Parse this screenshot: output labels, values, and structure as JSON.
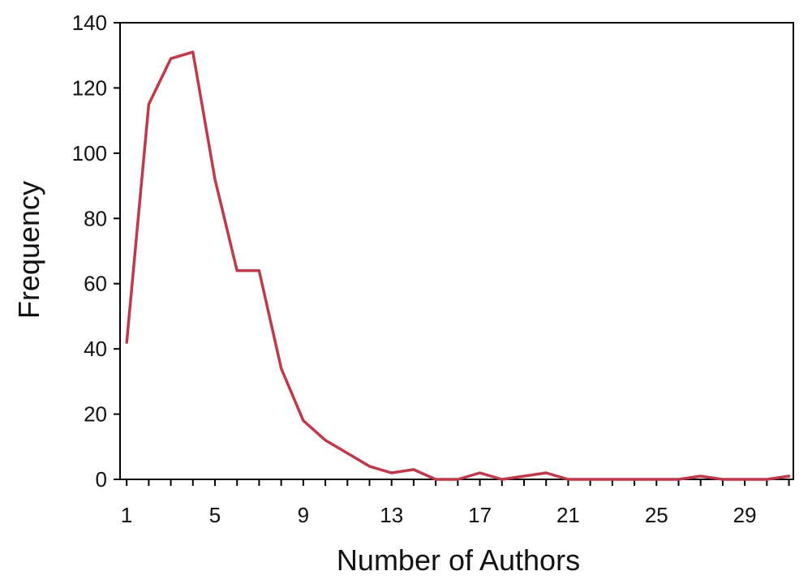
{
  "chart_data": {
    "type": "line",
    "title": "",
    "xlabel": "Number of Authors",
    "ylabel": "Frequency",
    "xlim": [
      0.7,
      31.2
    ],
    "ylim": [
      0,
      140
    ],
    "x_ticks": [
      "1",
      "5",
      "9",
      "13",
      "17",
      "21",
      "25",
      "29"
    ],
    "y_ticks": [
      "0",
      "20",
      "40",
      "60",
      "80",
      "100",
      "120",
      "140"
    ],
    "grid": false,
    "legend": "none",
    "color": "#c0394a",
    "series": [
      {
        "x": [
          1,
          2,
          3,
          4,
          5,
          6,
          7,
          8,
          9,
          10,
          11,
          12,
          13,
          14,
          15,
          16,
          17,
          18,
          19,
          20,
          21,
          22,
          23,
          24,
          25,
          26,
          27,
          28,
          29,
          30,
          31
        ],
        "values": [
          42,
          115,
          129,
          131,
          92,
          64,
          64,
          34,
          18,
          12,
          8,
          4,
          2,
          3,
          0,
          0,
          2,
          0,
          1,
          2,
          0,
          0,
          0,
          0,
          0,
          0,
          1,
          0,
          0,
          0,
          1
        ]
      }
    ]
  }
}
